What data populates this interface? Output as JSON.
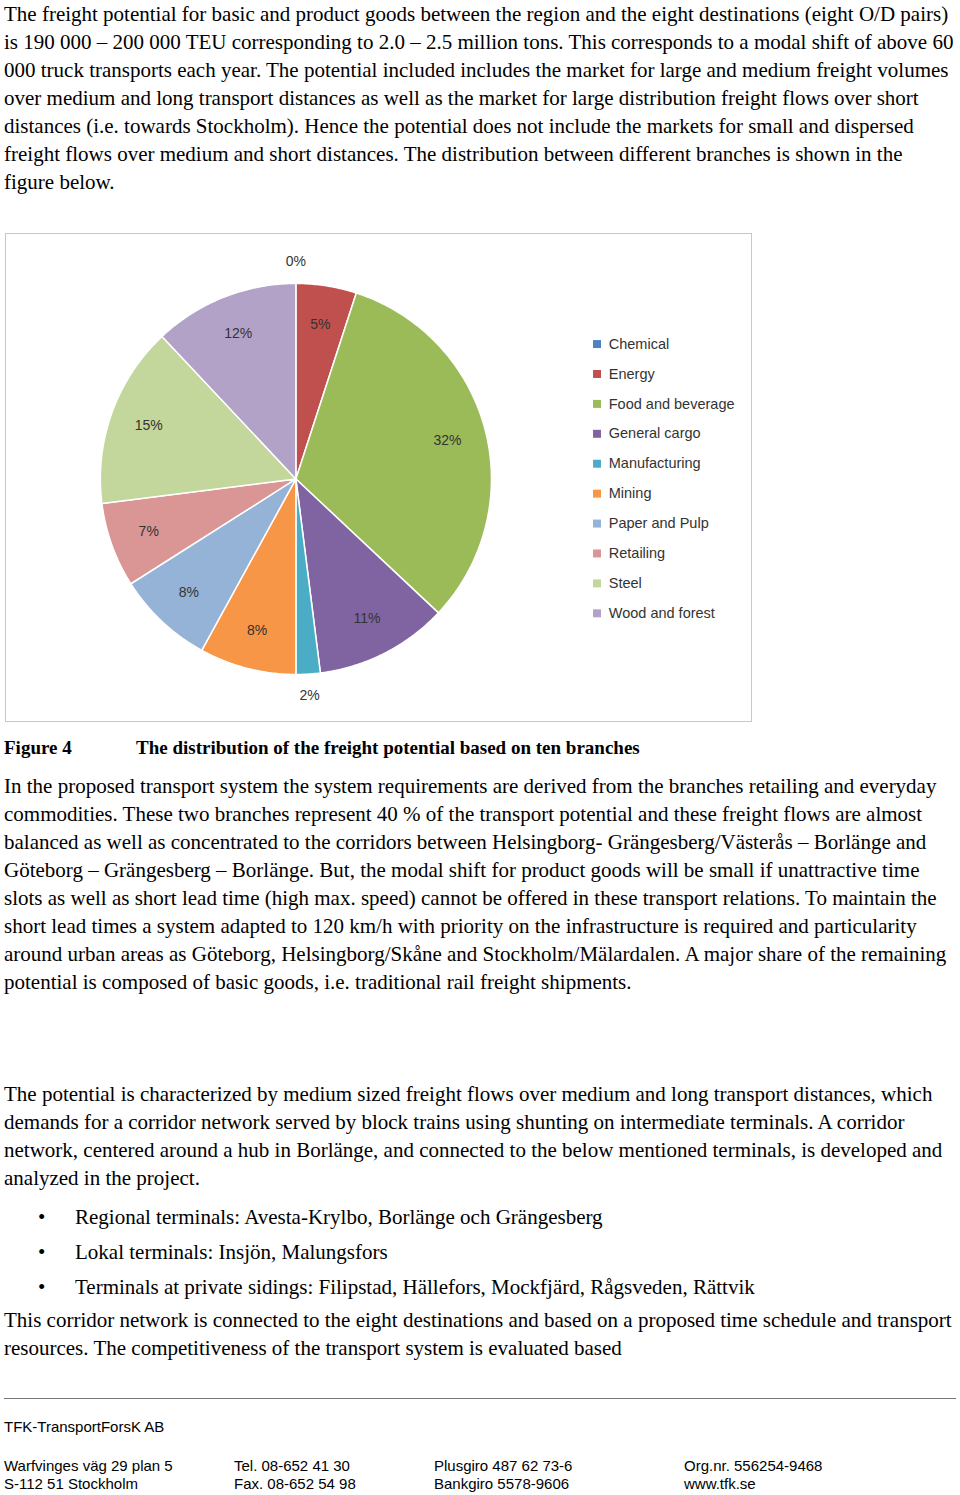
{
  "paragraphs_before": [
    "The freight potential for basic and product goods between the region and the eight destinations (eight O/D pairs) is 190 000 – 200 000 TEU corresponding to 2.0 – 2.5 million tons. This corresponds to a modal shift of above 60 000 truck transports each year. The potential included includes the market for large and medium freight volumes over medium and long transport distances as well as the market for large distribution freight flows over short distances (i.e. towards Stockholm). Hence the potential does not include the markets for small and dispersed freight flows over medium and short distances. The distribution between different branches is shown in the figure below."
  ],
  "chart_data": {
    "type": "pie",
    "categories": [
      "Chemical",
      "Energy",
      "Food and beverage",
      "General cargo",
      "Manufacturing",
      "Mining",
      "Paper and Pulp",
      "Retailing",
      "Steel",
      "Wood and forest"
    ],
    "values": [
      0,
      5,
      32,
      11,
      2,
      8,
      8,
      7,
      15,
      12
    ],
    "value_labels": [
      "0%",
      "5%",
      "32%",
      "11%",
      "2%",
      "8%",
      "8%",
      "7%",
      "15%",
      "12%"
    ],
    "colors": [
      "#4f81bd",
      "#c0504d",
      "#9bbb59",
      "#8064a2",
      "#4bacc6",
      "#f79646",
      "#95b3d7",
      "#d99694",
      "#c3d69b",
      "#b2a2c7"
    ],
    "data_labels": true,
    "legend": "right"
  },
  "caption": {
    "label": "Figure 4",
    "text": "The distribution of the freight potential based on ten branches"
  },
  "paragraphs_after": [
    "In the proposed transport system the system requirements are derived from the branches retailing and everyday commodities. These two branches represent 40 % of the transport potential and these freight flows are almost balanced as well as concentrated to the corridors between Helsingborg- Grängesberg/Västerås – Borlänge and Göteborg – Grängesberg – Borlänge. But, the modal shift for product goods will be small if unattractive time slots as well as short lead time (high max. speed) cannot be offered in these transport relations. To maintain the short lead times a system adapted to 120 km/h with priority on the infrastructure is required and particularity around urban areas as Göteborg, Helsingborg/Skåne and Stockholm/Mälardalen. A major share of the remaining potential is composed of basic goods, i.e. traditional rail freight shipments.",
    "The potential is characterized by medium sized freight flows over medium and long transport distances, which demands for a corridor network served by block trains using shunting on intermediate terminals. A corridor network, centered around a hub in Borlänge, and connected to the below mentioned terminals, is developed and analyzed in the project."
  ],
  "bullets": [
    "Regional terminals: Avesta-Krylbo, Borlänge och Grängesberg",
    "Lokal terminals: Insjön, Malungsfors",
    "Terminals at private sidings: Filipstad, Hällefors, Mockfjärd, Rågsveden, Rättvik"
  ],
  "closing_paragraph": "This corridor network is connected to the eight destinations and based on a proposed time schedule and transport resources. The competitiveness of the transport system is evaluated based",
  "footer": {
    "company": "TFK-TransportForsK AB",
    "rows": [
      [
        "Warfvinges väg 29 plan 5",
        "Tel. 08-652 41 30",
        "Plusgiro 487 62 73-6",
        "Org.nr. 556254-9468"
      ],
      [
        "S-112 51 Stockholm",
        "Fax. 08-652 54 98",
        "Bankgiro 5578-9606",
        "www.tfk.se"
      ]
    ]
  }
}
